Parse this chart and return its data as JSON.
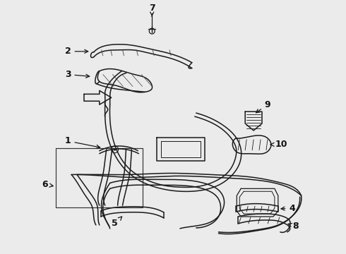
{
  "bg_color": "#ebebeb",
  "line_color": "#1a1a1a",
  "label_color": "#111111",
  "lw": 1.1
}
